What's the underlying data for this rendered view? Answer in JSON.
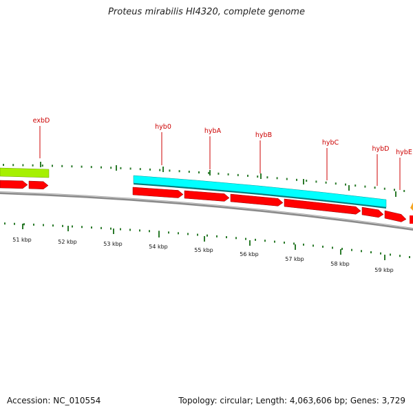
{
  "title": "Proteus mirabilis HI4320, complete genome",
  "accession": "Accession: NC_010554",
  "topology": "Topology: circular; Length: 4,063,606 bp; Genes: 3,729",
  "colors": {
    "backbone": "#8a8a8a",
    "tick": "#2a7a2a",
    "cds_forward": "#ff0000",
    "operon_cyan": "#00ffff",
    "operon_green": "#a6f000",
    "label_text": "#cc0000",
    "partial_orange": "#f5a623"
  },
  "gene_labels": [
    "exbD",
    "hyb0",
    "hybA",
    "hybB",
    "hybC",
    "hybD",
    "hybE"
  ],
  "kbp_labels": [
    "51 kbp",
    "52 kbp",
    "53 kbp",
    "54 kbp",
    "55 kbp",
    "56 kbp",
    "57 kbp",
    "58 kbp",
    "59 kbp"
  ]
}
